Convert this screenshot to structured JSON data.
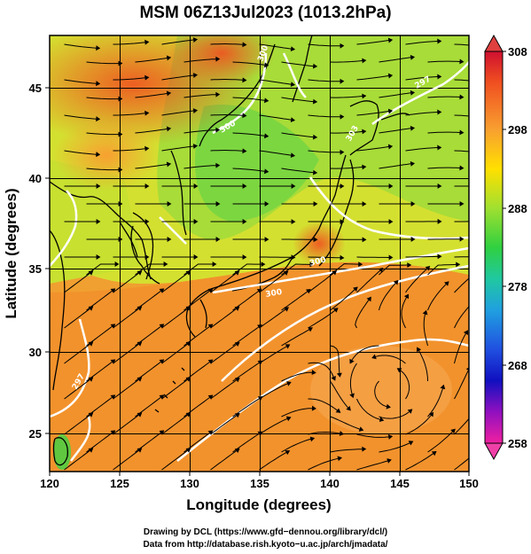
{
  "title": "MSM 06Z13Jul2023 (1013.2hPa)",
  "axes": {
    "xlabel": "Longitude (degrees)",
    "ylabel": "Latitude  (degrees)",
    "xticks": [
      "120",
      "125",
      "130",
      "135",
      "140",
      "145",
      "150"
    ],
    "yticks": [
      "25",
      "30",
      "35",
      "40",
      "45"
    ]
  },
  "colorbar": {
    "ticks": [
      "308",
      "298",
      "288",
      "278",
      "268",
      "258"
    ],
    "colors": [
      "#d01030",
      "#f06a20",
      "#f8a030",
      "#ffd400",
      "#c8e830",
      "#50d840",
      "#20c0a0",
      "#20a0e0",
      "#2050e0",
      "#1010c0",
      "#9010c0",
      "#f020a0"
    ]
  },
  "contour_labels": [
    "297",
    "300",
    "300",
    "300",
    "300",
    "297",
    "303"
  ],
  "footer": {
    "line1": "Drawing by DCL (https://www.gfd−dennou.org/library/dcl/)",
    "line2": "Data from http://database.rish.kyoto−u.ac.jp/arch/jmadata/"
  }
}
